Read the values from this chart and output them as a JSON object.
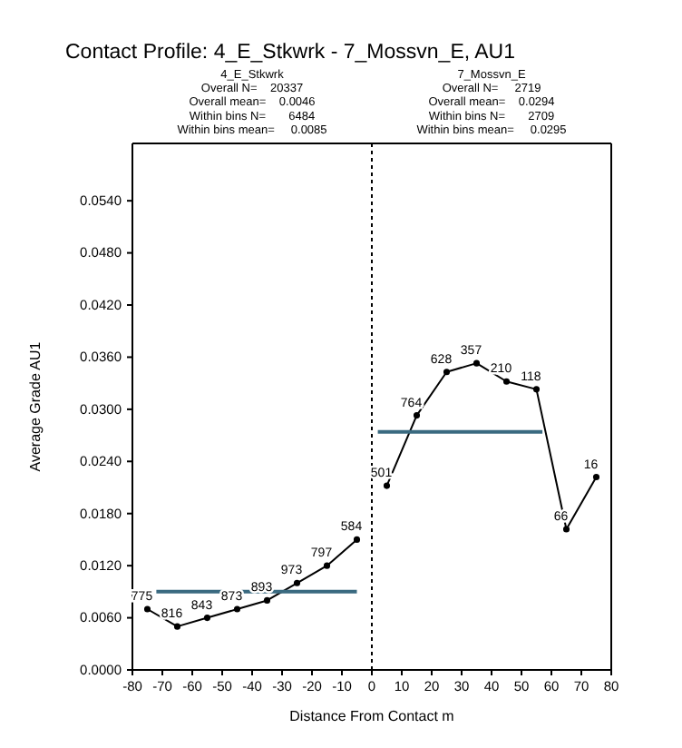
{
  "chart_data": {
    "type": "line",
    "title": "Contact Profile: 4_E_Stkwrk - 7_Mossvn_E, AU1",
    "xlabel": "Distance From Contact m",
    "ylabel": "Average Grade AU1",
    "xlim": [
      -80,
      80
    ],
    "xticks": [
      -80,
      -70,
      -60,
      -50,
      -40,
      -30,
      -20,
      -10,
      0,
      10,
      20,
      30,
      40,
      50,
      60,
      70,
      80
    ],
    "ylim": [
      0,
      0.0606
    ],
    "yticks": [
      {
        "value": 0,
        "label": "0.0000"
      },
      {
        "value": 0.006,
        "label": "0.0060"
      },
      {
        "value": 0.012,
        "label": "0.0120"
      },
      {
        "value": 0.018,
        "label": "0.0180"
      },
      {
        "value": 0.024,
        "label": "0.0240"
      },
      {
        "value": 0.03,
        "label": "0.0300"
      },
      {
        "value": 0.036,
        "label": "0.0360"
      },
      {
        "value": 0.042,
        "label": "0.0420"
      },
      {
        "value": 0.048,
        "label": "0.0480"
      },
      {
        "value": 0.054,
        "label": "0.0540"
      }
    ],
    "marker": "circle",
    "grid": false,
    "series": [
      {
        "color": "#000000",
        "x": [
          -75,
          -65,
          -55,
          -45,
          -35,
          -25,
          -15,
          -5
        ],
        "values": [
          0.007,
          0.005,
          0.006,
          0.007,
          0.008,
          0.01,
          0.012,
          0.015
        ]
      },
      {
        "color": "#000000",
        "x": [
          5,
          15,
          25,
          35,
          45,
          55,
          65,
          75
        ],
        "values": [
          0.0212,
          0.0293,
          0.0343,
          0.0353,
          0.0332,
          0.0323,
          0.0162,
          0.0222
        ]
      },
      {
        "color": "#3a6a80",
        "marker": "none",
        "x": [
          -72,
          -5
        ],
        "values": [
          0.009,
          0.009
        ]
      },
      {
        "color": "#3a6a80",
        "marker": "none",
        "x": [
          2,
          57
        ],
        "values": [
          0.0274,
          0.0274
        ]
      }
    ],
    "ref_lines": [
      {
        "axis": "x",
        "value": 0,
        "line_style": "dotted",
        "color": "#000000"
      }
    ],
    "annotations": [
      "4_E_Stkwrk\nOverall N=    20337\nOverall mean=    0.0046\nWithin bins N=       6484\nWithin bins mean=     0.0085",
      "7_Mossvn_E\nOverall N=     2719\nOverall mean=    0.0294\nWithin bins N=       2709\nWithin bins mean=     0.0295",
      {
        "text": "775",
        "x": -75,
        "y": 0.007
      },
      {
        "text": "816",
        "x": -65,
        "y": 0.005
      },
      {
        "text": "843",
        "x": -55,
        "y": 0.006
      },
      {
        "text": "873",
        "x": -45,
        "y": 0.007
      },
      {
        "text": "893",
        "x": -35,
        "y": 0.008
      },
      {
        "text": "973",
        "x": -25,
        "y": 0.01
      },
      {
        "text": "797",
        "x": -15,
        "y": 0.012
      },
      {
        "text": "584",
        "x": -5,
        "y": 0.015
      },
      {
        "text": "501",
        "x": 5,
        "y": 0.0212
      },
      {
        "text": "764",
        "x": 15,
        "y": 0.0293
      },
      {
        "text": "628",
        "x": 25,
        "y": 0.0343
      },
      {
        "text": "357",
        "x": 35,
        "y": 0.0353
      },
      {
        "text": "210",
        "x": 45,
        "y": 0.0332
      },
      {
        "text": "118",
        "x": 55,
        "y": 0.0323
      },
      {
        "text": "66",
        "x": 65,
        "y": 0.0162
      },
      {
        "text": "16",
        "x": 75,
        "y": 0.0222
      }
    ]
  }
}
